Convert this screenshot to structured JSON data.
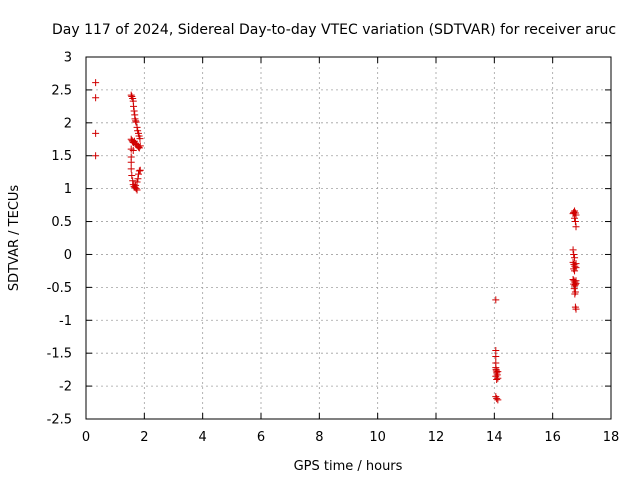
{
  "chart_data": {
    "type": "scatter",
    "title": "Day 117 of 2024, Sidereal Day-to-day VTEC variation (SDTVAR) for receiver aruc",
    "xlabel": "GPS time / hours",
    "ylabel": "SDTVAR / TECUs",
    "xlim": [
      0,
      18
    ],
    "ylim": [
      -2.5,
      3
    ],
    "xticks": [
      0,
      2,
      4,
      6,
      8,
      10,
      12,
      14,
      16,
      18
    ],
    "xtick_labels": [
      "0",
      "2",
      "4",
      "6",
      "8",
      "10",
      "12",
      "14",
      "16",
      "18"
    ],
    "yticks": [
      -2.5,
      -2,
      -1.5,
      -1,
      -0.5,
      0,
      0.5,
      1,
      1.5,
      2,
      2.5,
      3
    ],
    "ytick_labels": [
      "-2.5",
      "-2",
      "-1.5",
      "-1",
      "-0.5",
      "0",
      "0.5",
      "1",
      "1.5",
      "2",
      "2.5",
      "3"
    ],
    "grid": true,
    "marker": "plus",
    "color": "#d00000",
    "series": [
      {
        "name": "SDTVAR",
        "points": [
          [
            0.33,
            2.61
          ],
          [
            0.33,
            2.38
          ],
          [
            0.33,
            1.84
          ],
          [
            0.33,
            1.5
          ],
          [
            1.55,
            2.42
          ],
          [
            1.57,
            2.4
          ],
          [
            1.6,
            2.37
          ],
          [
            1.62,
            2.33
          ],
          [
            1.63,
            2.25
          ],
          [
            1.65,
            2.18
          ],
          [
            1.67,
            2.12
          ],
          [
            1.68,
            2.06
          ],
          [
            1.7,
            2.03
          ],
          [
            1.72,
            2.01
          ],
          [
            1.75,
            1.93
          ],
          [
            1.77,
            1.88
          ],
          [
            1.8,
            1.84
          ],
          [
            1.82,
            1.8
          ],
          [
            1.85,
            1.76
          ],
          [
            1.55,
            1.75
          ],
          [
            1.58,
            1.73
          ],
          [
            1.6,
            1.71
          ],
          [
            1.63,
            1.7
          ],
          [
            1.66,
            1.72
          ],
          [
            1.7,
            1.69
          ],
          [
            1.73,
            1.67
          ],
          [
            1.76,
            1.65
          ],
          [
            1.8,
            1.63
          ],
          [
            1.83,
            1.62
          ],
          [
            1.86,
            1.65
          ],
          [
            1.55,
            1.6
          ],
          [
            1.55,
            1.48
          ],
          [
            1.55,
            1.4
          ],
          [
            1.55,
            1.3
          ],
          [
            1.57,
            1.2
          ],
          [
            1.6,
            1.12
          ],
          [
            1.62,
            1.06
          ],
          [
            1.65,
            1.03
          ],
          [
            1.68,
            1.02
          ],
          [
            1.7,
            1.05
          ],
          [
            1.72,
            1.0
          ],
          [
            1.75,
            0.98
          ],
          [
            1.78,
            1.15
          ],
          [
            1.8,
            1.22
          ],
          [
            1.83,
            1.27
          ],
          [
            1.86,
            1.28
          ],
          [
            1.75,
            1.1
          ],
          [
            1.62,
            1.58
          ],
          [
            14.05,
            -0.69
          ],
          [
            14.05,
            -1.46
          ],
          [
            14.05,
            -1.55
          ],
          [
            14.05,
            -1.65
          ],
          [
            14.05,
            -1.72
          ],
          [
            14.06,
            -1.75
          ],
          [
            14.07,
            -1.77
          ],
          [
            14.08,
            -1.8
          ],
          [
            14.1,
            -1.83
          ],
          [
            14.12,
            -1.78
          ],
          [
            14.05,
            -1.85
          ],
          [
            14.08,
            -1.9
          ],
          [
            14.12,
            -1.88
          ],
          [
            14.05,
            -2.16
          ],
          [
            14.08,
            -2.19
          ],
          [
            14.12,
            -2.21
          ],
          [
            16.7,
            0.62
          ],
          [
            16.72,
            0.64
          ],
          [
            16.75,
            0.66
          ],
          [
            16.78,
            0.63
          ],
          [
            16.8,
            0.6
          ],
          [
            16.75,
            0.55
          ],
          [
            16.78,
            0.5
          ],
          [
            16.8,
            0.42
          ],
          [
            16.7,
            0.07
          ],
          [
            16.72,
            0.0
          ],
          [
            16.75,
            -0.05
          ],
          [
            16.7,
            -0.12
          ],
          [
            16.73,
            -0.15
          ],
          [
            16.76,
            -0.18
          ],
          [
            16.8,
            -0.14
          ],
          [
            16.72,
            -0.22
          ],
          [
            16.75,
            -0.25
          ],
          [
            16.8,
            -0.2
          ],
          [
            16.7,
            -0.38
          ],
          [
            16.73,
            -0.4
          ],
          [
            16.76,
            -0.42
          ],
          [
            16.8,
            -0.44
          ],
          [
            16.72,
            -0.45
          ],
          [
            16.75,
            -0.48
          ],
          [
            16.78,
            -0.46
          ],
          [
            16.8,
            -0.4
          ],
          [
            16.74,
            -0.52
          ],
          [
            16.78,
            -0.57
          ],
          [
            16.76,
            -0.6
          ],
          [
            16.78,
            -0.8
          ],
          [
            16.8,
            -0.83
          ]
        ]
      }
    ]
  }
}
